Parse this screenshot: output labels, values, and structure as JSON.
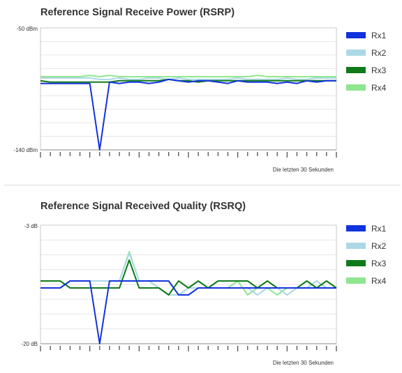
{
  "chart_data": [
    {
      "type": "line",
      "title": "Reference Signal Receive Power (RSRP)",
      "ylabel": "",
      "xlabel": "Die letzten 30 Sekunden",
      "ylim": [
        -140,
        -50
      ],
      "ytick_labels": [
        "-50 dBm",
        "-140 dBm"
      ],
      "x": [
        1,
        2,
        3,
        4,
        5,
        6,
        7,
        8,
        9,
        10,
        11,
        12,
        13,
        14,
        15,
        16,
        17,
        18,
        19,
        20,
        21,
        22,
        23,
        24,
        25,
        26,
        27,
        28,
        29,
        30,
        31
      ],
      "grid": true,
      "legend_position": "right",
      "series": [
        {
          "name": "Rx1",
          "color": "#1133dd",
          "values": [
            -91,
            -91,
            -91,
            -91,
            -91,
            -91,
            -140,
            -90,
            -91,
            -90,
            -90,
            -91,
            -90,
            -88,
            -89,
            -90,
            -89,
            -89,
            -90,
            -91,
            -89,
            -90,
            -90,
            -90,
            -91,
            -90,
            -91,
            -89,
            -90,
            -89,
            -89
          ]
        },
        {
          "name": "Rx2",
          "color": "#acd8e6",
          "values": [
            -87,
            -87,
            -87,
            -87,
            -87,
            -87,
            -88,
            -88,
            -87,
            -88,
            -88,
            -87,
            -87,
            -88,
            -87,
            -88,
            -88,
            -88,
            -88,
            -88,
            -87,
            -88,
            -88,
            -88,
            -88,
            -87,
            -88,
            -88,
            -87,
            -87,
            -87
          ]
        },
        {
          "name": "Rx3",
          "color": "#0f7a1a",
          "values": [
            -89,
            -90,
            -90,
            -90,
            -90,
            -90,
            -90,
            -90,
            -89,
            -89,
            -89,
            -89,
            -89,
            -88,
            -89,
            -89,
            -90,
            -89,
            -89,
            -89,
            -89,
            -89,
            -89,
            -89,
            -89,
            -89,
            -89,
            -89,
            -89,
            -89,
            -89
          ]
        },
        {
          "name": "Rx4",
          "color": "#8fe68f",
          "values": [
            -86,
            -86,
            -86,
            -86,
            -86,
            -85,
            -86,
            -85,
            -86,
            -86,
            -86,
            -86,
            -86,
            -86,
            -86,
            -86,
            -86,
            -86,
            -86,
            -86,
            -86,
            -86,
            -85,
            -86,
            -86,
            -86,
            -86,
            -86,
            -86,
            -86,
            -86
          ]
        }
      ]
    },
    {
      "type": "line",
      "title": "Reference Signal Received Quality (RSRQ)",
      "ylabel": "",
      "xlabel": "Die letzten 30 Sekunden",
      "ylim": [
        -20,
        -3
      ],
      "ytick_labels": [
        "-3 dB",
        "-20 dB"
      ],
      "x": [
        1,
        2,
        3,
        4,
        5,
        6,
        7,
        8,
        9,
        10,
        11,
        12,
        13,
        14,
        15,
        16,
        17,
        18,
        19,
        20,
        21,
        22,
        23,
        24,
        25,
        26,
        27,
        28,
        29,
        30,
        31
      ],
      "grid": true,
      "legend_position": "right",
      "series": [
        {
          "name": "Rx1",
          "color": "#1133dd",
          "values": [
            -12,
            -12,
            -12,
            -11,
            -11,
            -11,
            -20,
            -11,
            -11,
            -11,
            -11,
            -11,
            -11,
            -11,
            -13,
            -13,
            -12,
            -12,
            -12,
            -12,
            -12,
            -12,
            -12,
            -12,
            -12,
            -12,
            -12,
            -12,
            -12,
            -12,
            -12
          ]
        },
        {
          "name": "Rx2",
          "color": "#acd8e6",
          "values": [
            -12,
            -12,
            -12,
            -11,
            -11,
            -11,
            -11,
            -11,
            -11,
            -7,
            -11,
            -11,
            -12,
            -13,
            -13,
            -12,
            -12,
            -12,
            -12,
            -12,
            -12,
            -12,
            -13,
            -12,
            -12,
            -13,
            -12,
            -12,
            -11,
            -12,
            -12
          ]
        },
        {
          "name": "Rx3",
          "color": "#0f7a1a",
          "values": [
            -11,
            -11,
            -11,
            -12,
            -12,
            -12,
            -12,
            -12,
            -12,
            -8,
            -12,
            -12,
            -12,
            -13,
            -11,
            -12,
            -11,
            -12,
            -11,
            -11,
            -11,
            -11,
            -12,
            -11,
            -12,
            -12,
            -12,
            -11,
            -12,
            -11,
            -12
          ]
        },
        {
          "name": "Rx4",
          "color": "#8fe68f",
          "values": [
            -12,
            -12,
            -12,
            -11,
            -11,
            -11,
            -11,
            -11,
            -11,
            -6.8,
            -11,
            -11,
            -12,
            -13,
            -13,
            -12,
            -12,
            -12,
            -12,
            -12,
            -11,
            -13,
            -12,
            -12,
            -13,
            -12,
            -12,
            -12,
            -11,
            -12,
            -12
          ]
        }
      ]
    }
  ]
}
